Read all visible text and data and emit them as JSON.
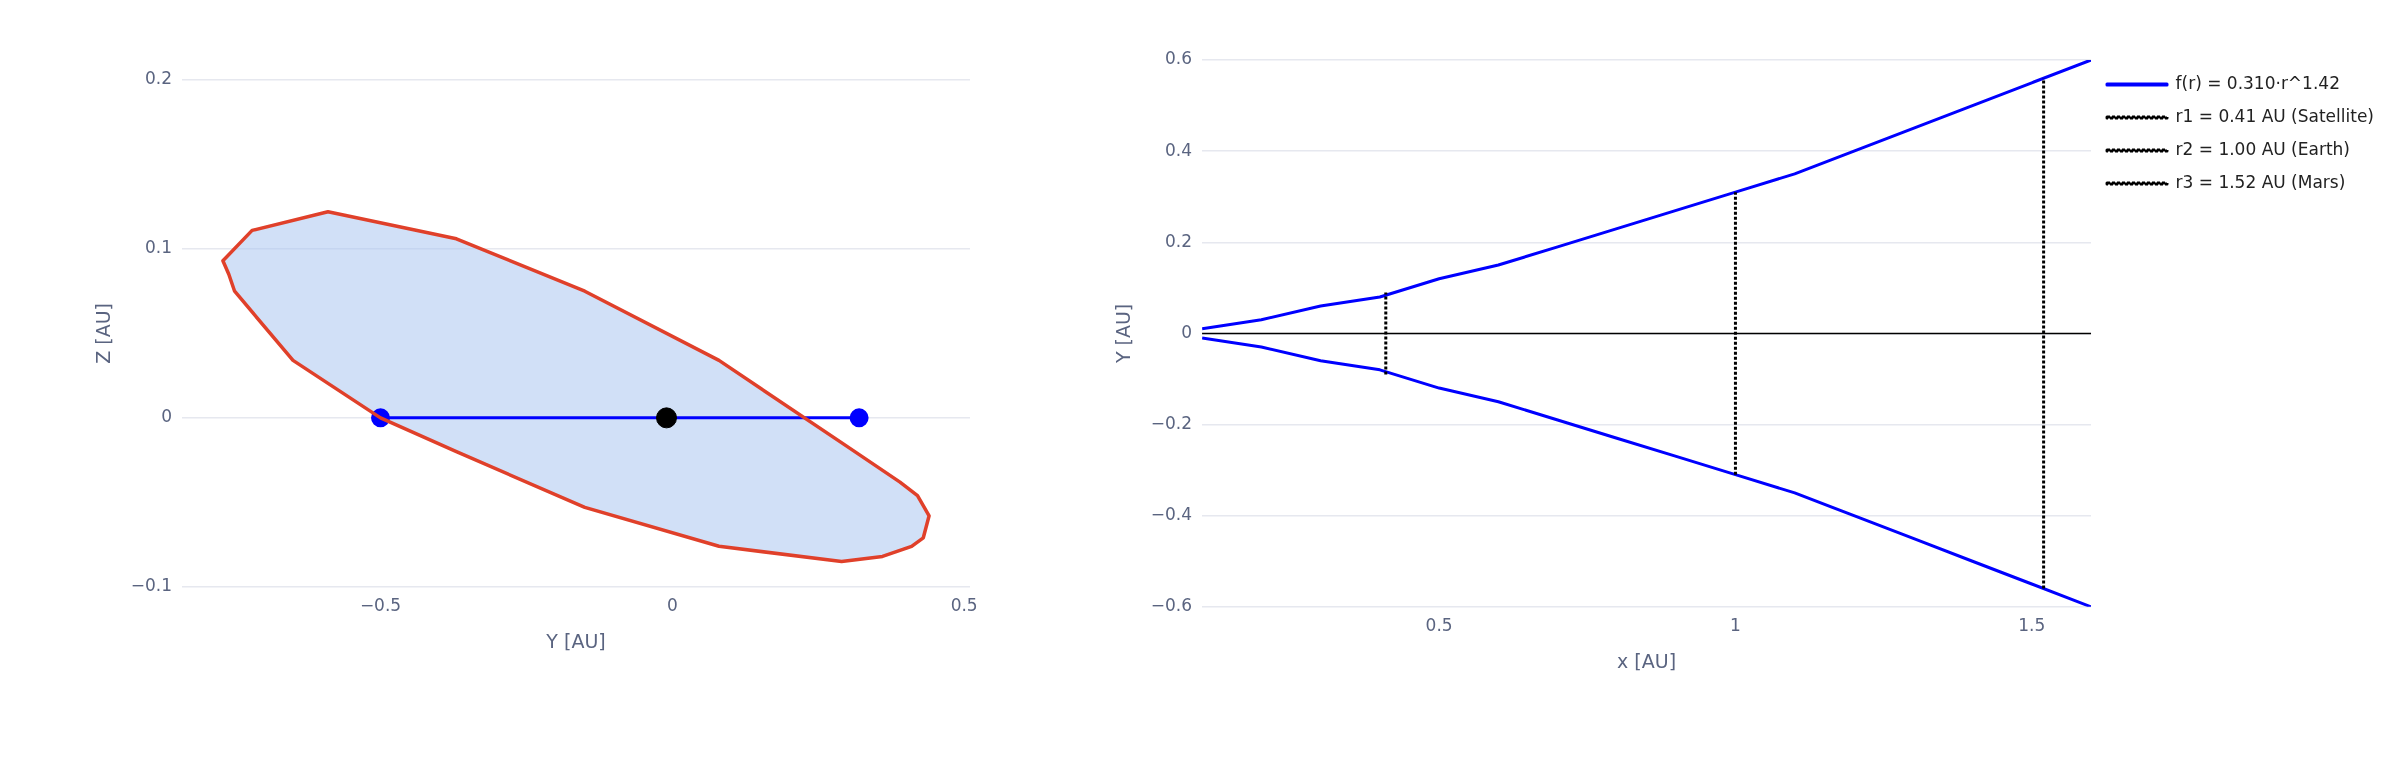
{
  "chart_data": [
    {
      "type": "line",
      "xlabel": "Y [AU]",
      "ylabel": "Z [AU]",
      "xlim": [
        -0.84,
        0.51
      ],
      "ylim": [
        -0.1,
        0.2
      ],
      "xticks": [
        -0.5,
        0,
        0.5
      ],
      "yticks": [
        -0.1,
        0,
        0.1,
        0.2
      ],
      "grid": "y",
      "legend": false,
      "series": [
        {
          "type": "area",
          "color": "#a8c4f0",
          "x": [
            -0.77,
            -0.72,
            -0.59,
            -0.37,
            -0.15,
            0.08,
            0.3,
            0.39,
            0.42,
            0.44,
            0.43,
            0.41,
            0.36,
            0.29,
            0.08,
            -0.15,
            -0.37,
            -0.5,
            -0.65,
            -0.75,
            -0.76,
            -0.77
          ],
          "values": [
            0.093,
            0.111,
            0.122,
            0.106,
            0.075,
            0.034,
            -0.017,
            -0.038,
            -0.046,
            -0.058,
            -0.071,
            -0.076,
            -0.082,
            -0.085,
            -0.076,
            -0.053,
            -0.02,
            0,
            0.034,
            0.075,
            0.085,
            0.093
          ]
        },
        {
          "type": "line",
          "color": "#0000ff",
          "marker": "circle",
          "x": [
            -0.5,
            0.32
          ],
          "values": [
            0,
            0
          ]
        },
        {
          "type": "scatter",
          "color": "#000000",
          "marker": "circle",
          "x": [
            -0.01
          ],
          "values": [
            0
          ]
        }
      ]
    },
    {
      "type": "line",
      "xlabel": "x [AU]",
      "ylabel": "Y [AU]",
      "xlim": [
        0.1,
        1.6
      ],
      "ylim": [
        -0.6,
        0.6
      ],
      "xticks": [
        0.5,
        1,
        1.5
      ],
      "yticks": [
        -0.6,
        -0.4,
        -0.2,
        0,
        0.2,
        0.4,
        0.6
      ],
      "grid": "y",
      "legend": "right",
      "ref_lines": [
        {
          "axis": "y",
          "value": 0,
          "color": "#000000"
        }
      ],
      "series": [
        {
          "name": "f(r) = 0.310·r^1.42",
          "color": "#0000ff",
          "x": [
            0.1,
            0.2,
            0.3,
            0.4,
            0.5,
            0.6,
            0.7,
            0.8,
            0.9,
            1.0,
            1.1,
            1.2,
            1.3,
            1.4,
            1.5,
            1.6
          ],
          "values": [
            0.01,
            0.03,
            0.06,
            0.08,
            0.12,
            0.15,
            0.19,
            0.23,
            0.27,
            0.31,
            0.35,
            0.4,
            0.45,
            0.5,
            0.55,
            0.6
          ]
        },
        {
          "color": "#0000ff",
          "x": [
            0.1,
            0.2,
            0.3,
            0.4,
            0.5,
            0.6,
            0.7,
            0.8,
            0.9,
            1.0,
            1.1,
            1.2,
            1.3,
            1.4,
            1.5,
            1.6
          ],
          "values": [
            -0.01,
            -0.03,
            -0.06,
            -0.08,
            -0.12,
            -0.15,
            -0.19,
            -0.23,
            -0.27,
            -0.31,
            -0.35,
            -0.4,
            -0.45,
            -0.5,
            -0.55,
            -0.6
          ]
        },
        {
          "name": "r1 = 0.41 AU (Satellite)",
          "color": "#000000",
          "line_style": "dotted",
          "x": [
            0.41,
            0.41
          ],
          "values": [
            -0.09,
            0.09
          ]
        },
        {
          "name": "r2 = 1.00 AU (Earth)",
          "color": "#000000",
          "line_style": "dotted",
          "x": [
            1.0,
            1.0
          ],
          "values": [
            -0.31,
            0.31
          ]
        },
        {
          "name": "r3 = 1.52 AU (Mars)",
          "color": "#000000",
          "line_style": "dotted",
          "x": [
            1.52,
            1.52
          ],
          "values": [
            -0.56,
            0.56
          ]
        }
      ]
    }
  ]
}
